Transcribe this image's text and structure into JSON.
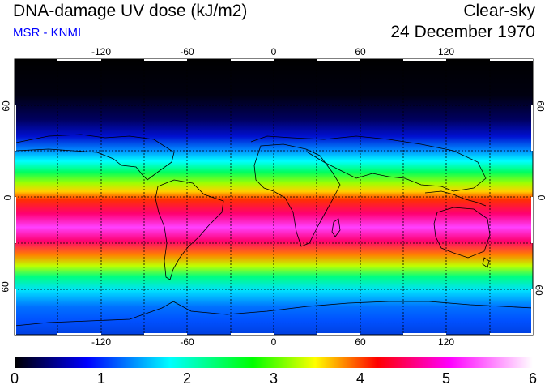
{
  "header": {
    "title": "DNA-damage UV dose (kJ/m2)",
    "subtitle": "MSR - KNMI",
    "condition": "Clear-sky",
    "date": "24 December 1970"
  },
  "map": {
    "lon_ticks": [
      "-120",
      "-60",
      "0",
      "60",
      "120"
    ],
    "lat_ticks": [
      "60",
      "0",
      "-60"
    ]
  },
  "colorbar": {
    "labels": [
      "0",
      "1",
      "2",
      "3",
      "4",
      "5",
      "6"
    ],
    "colors": [
      "#000000",
      "#0000ff",
      "#00ffff",
      "#00ff00",
      "#ffff00",
      "#ff0000",
      "#ff00ff",
      "#ffffff"
    ]
  }
}
